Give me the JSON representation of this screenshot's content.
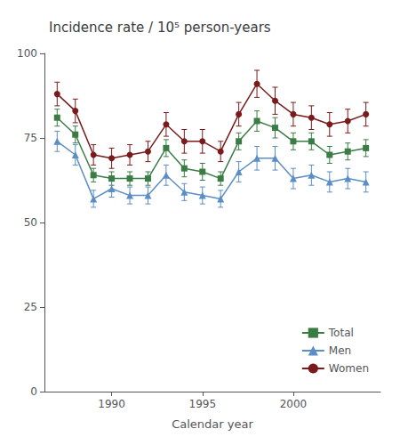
{
  "chart_data": {
    "type": "line",
    "title": "Incidence rate / 10⁵ person-years",
    "xlabel": "Calendar year",
    "x": [
      1987,
      1988,
      1989,
      1990,
      1991,
      1992,
      1993,
      1994,
      1995,
      1996,
      1997,
      1998,
      1999,
      2000,
      2001,
      2002,
      2003,
      2004
    ],
    "series": [
      {
        "name": "Total",
        "color": "#3a7d44",
        "marker": "square",
        "values": [
          81,
          76,
          64,
          63,
          63,
          63,
          72,
          66,
          65,
          63,
          74,
          80,
          78,
          74,
          74,
          70,
          71,
          72
        ],
        "errors": [
          2.5,
          2.5,
          2.0,
          2.0,
          2.0,
          2.0,
          2.5,
          2.5,
          2.5,
          2.0,
          2.5,
          3.0,
          3.0,
          2.5,
          2.5,
          2.5,
          2.5,
          2.5
        ]
      },
      {
        "name": "Men",
        "color": "#5b8ec4",
        "marker": "triangle",
        "values": [
          74,
          70,
          57,
          60,
          58,
          58,
          64,
          59,
          58,
          57,
          65,
          69,
          69,
          63,
          64,
          62,
          63,
          62
        ],
        "errors": [
          3.0,
          3.0,
          2.5,
          2.5,
          2.5,
          2.5,
          3.0,
          2.5,
          2.5,
          2.5,
          3.0,
          3.5,
          3.5,
          3.0,
          3.0,
          3.0,
          3.0,
          3.0
        ]
      },
      {
        "name": "Women",
        "color": "#7a1a1a",
        "marker": "circle",
        "values": [
          88,
          83,
          70,
          69,
          70,
          71,
          79,
          74,
          74,
          71,
          82,
          91,
          86,
          82,
          81,
          79,
          80,
          82
        ],
        "errors": [
          3.5,
          3.5,
          3.0,
          3.0,
          3.0,
          3.0,
          3.5,
          3.5,
          3.5,
          3.0,
          3.5,
          4.0,
          4.0,
          3.5,
          3.5,
          3.5,
          3.5,
          3.5
        ]
      }
    ],
    "xlim": [
      1986.3,
      2004.8
    ],
    "xticks": [
      1990,
      1995,
      2000
    ],
    "ylim": [
      0,
      100
    ],
    "yticks": [
      0,
      25,
      50,
      75,
      100
    ],
    "grid": false,
    "legend": "lower right"
  }
}
